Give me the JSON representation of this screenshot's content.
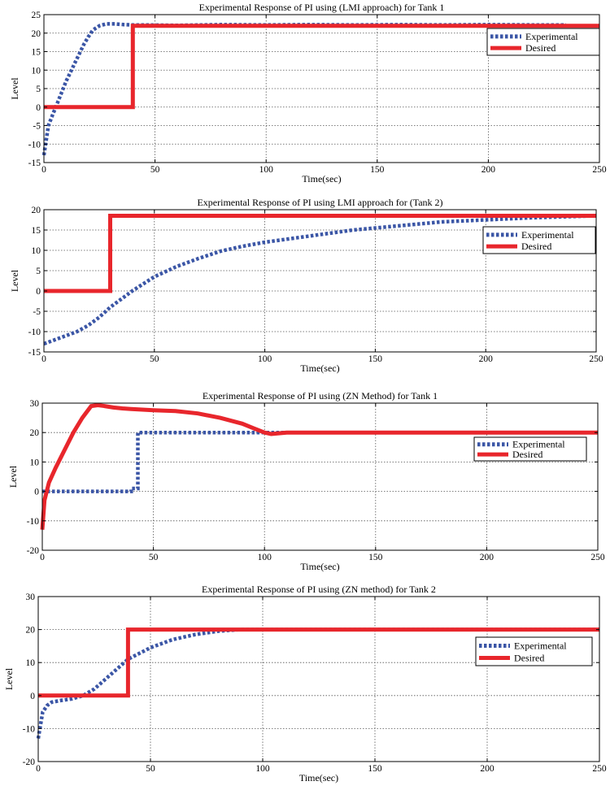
{
  "colors": {
    "experimental": "#3b56a6",
    "desired": "#e8262c",
    "grid": "#555555"
  },
  "chart_data": [
    {
      "type": "line",
      "title": "Experimental Response of PI using (LMI approach) for Tank 1",
      "xlabel": "Time(sec)",
      "ylabel": "Level",
      "xlim": [
        0,
        250
      ],
      "ylim": [
        -15,
        25
      ],
      "xticks": [
        0,
        50,
        100,
        150,
        200,
        250
      ],
      "yticks": [
        -15,
        -10,
        -5,
        0,
        5,
        10,
        15,
        20,
        25
      ],
      "grid": true,
      "legend_position": "top-right",
      "series": [
        {
          "name": "Experimental",
          "style": "dotted",
          "x": [
            0,
            2,
            4,
            6,
            8,
            10,
            12,
            14,
            16,
            18,
            20,
            22,
            25,
            28,
            32,
            36,
            40,
            45,
            60,
            80,
            100,
            120,
            140,
            160,
            180,
            200,
            220,
            235
          ],
          "y": [
            -13,
            -5,
            -2,
            1,
            4,
            7,
            9.5,
            12,
            14.5,
            17,
            19,
            20.8,
            22,
            22.5,
            22.5,
            22.3,
            22.2,
            22.2,
            22.1,
            22.3,
            22.2,
            22.3,
            22.2,
            22.3,
            22.2,
            22.3,
            22.2,
            22.2
          ]
        },
        {
          "name": "Desired",
          "style": "solid",
          "x": [
            0,
            40,
            40,
            250
          ],
          "y": [
            0,
            0,
            22,
            22
          ]
        }
      ]
    },
    {
      "type": "line",
      "title": "Experimental Response of PI using LMI approach for (Tank 2)",
      "xlabel": "Time(sec)",
      "ylabel": "Level",
      "xlim": [
        0,
        250
      ],
      "ylim": [
        -15,
        20
      ],
      "xticks": [
        0,
        50,
        100,
        150,
        200,
        250
      ],
      "yticks": [
        -15,
        -10,
        -5,
        0,
        5,
        10,
        15,
        20
      ],
      "grid": true,
      "legend_position": "top-right",
      "series": [
        {
          "name": "Experimental",
          "style": "dotted",
          "x": [
            0,
            5,
            10,
            15,
            20,
            25,
            30,
            35,
            40,
            50,
            60,
            70,
            80,
            90,
            100,
            120,
            140,
            160,
            180,
            200,
            220,
            250
          ],
          "y": [
            -13,
            -12,
            -11,
            -10,
            -8.5,
            -6.5,
            -4,
            -2,
            0,
            3.5,
            6,
            8,
            9.8,
            11,
            12,
            13.5,
            15,
            16,
            17,
            17.5,
            18,
            18.5
          ]
        },
        {
          "name": "Desired",
          "style": "solid",
          "x": [
            0,
            30,
            30,
            250
          ],
          "y": [
            0,
            0,
            18.5,
            18.5
          ]
        }
      ]
    },
    {
      "type": "line",
      "title": "Experimental Response of PI  using (ZN  Method) for Tank 1",
      "xlabel": "Time(sec)",
      "ylabel": "Level",
      "xlim": [
        0,
        250
      ],
      "ylim": [
        -20,
        30
      ],
      "xticks": [
        0,
        50,
        100,
        150,
        200,
        250
      ],
      "yticks": [
        -20,
        -10,
        0,
        10,
        20,
        30
      ],
      "grid": true,
      "legend_position": "right",
      "series": [
        {
          "name": "Experimental",
          "style": "dotted",
          "x": [
            0,
            40,
            40,
            43,
            43,
            250
          ],
          "y": [
            0,
            0,
            1,
            1,
            20,
            20
          ]
        },
        {
          "name": "Desired",
          "style": "solid",
          "x": [
            0,
            1,
            3,
            6,
            10,
            14,
            18,
            22,
            25,
            28,
            32,
            36,
            40,
            50,
            60,
            70,
            80,
            90,
            95,
            100,
            103,
            110,
            150,
            200,
            250
          ],
          "y": [
            -13,
            -3,
            3,
            8,
            14,
            20,
            25,
            29,
            29.3,
            29,
            28.5,
            28.2,
            28,
            27.6,
            27.3,
            26.5,
            25,
            23,
            21.5,
            20,
            19.5,
            20,
            20,
            20,
            20
          ]
        }
      ]
    },
    {
      "type": "line",
      "title": "Experimental Response of PI  using (ZN  method) for Tank 2",
      "xlabel": "Time(sec)",
      "ylabel": "Level",
      "xlim": [
        0,
        250
      ],
      "ylim": [
        -20,
        30
      ],
      "xticks": [
        0,
        50,
        100,
        150,
        200,
        250
      ],
      "yticks": [
        -20,
        -10,
        0,
        10,
        20,
        30
      ],
      "grid": true,
      "legend_position": "right",
      "series": [
        {
          "name": "Experimental",
          "style": "dotted",
          "x": [
            0,
            2,
            4,
            6,
            10,
            15,
            20,
            25,
            30,
            35,
            40,
            50,
            60,
            70,
            80,
            90,
            100,
            120,
            150,
            200,
            250
          ],
          "y": [
            -13,
            -5,
            -3,
            -2,
            -1.5,
            -1,
            0,
            2,
            5,
            8,
            11,
            14.5,
            17,
            18.5,
            19.5,
            20,
            20,
            20,
            20,
            20,
            20
          ]
        },
        {
          "name": "Desired",
          "style": "solid",
          "x": [
            0,
            40,
            40,
            250
          ],
          "y": [
            0,
            0,
            20,
            20
          ]
        }
      ]
    }
  ]
}
